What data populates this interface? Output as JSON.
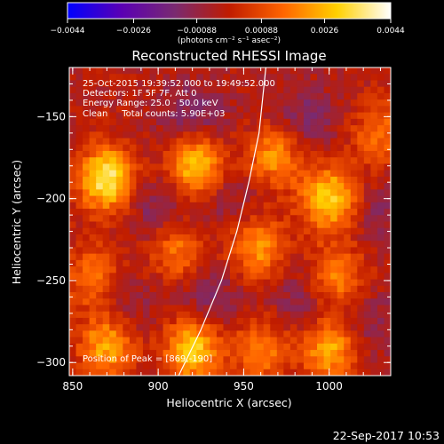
{
  "chart_data": {
    "type": "heatmap",
    "title": "Reconstructed RHESSI Image",
    "xlabel": "Heliocentric X (arcsec)",
    "ylabel": "Heliocentric Y (arcsec)",
    "xlim": [
      848,
      1036
    ],
    "ylim": [
      -308,
      -120
    ],
    "x_ticks": [
      850,
      900,
      950,
      1000
    ],
    "y_ticks": [
      -300,
      -250,
      -200,
      -150
    ],
    "x_tick_labels": [
      "850",
      "900",
      "950",
      "1000"
    ],
    "y_tick_labels": [
      "−300",
      "−250",
      "−200",
      "−150"
    ],
    "colorbar": {
      "range": [
        -0.0044,
        0.0044
      ],
      "ticks": [
        -0.0044,
        -0.0026,
        -0.00088,
        0.00088,
        0.0026,
        0.0044
      ],
      "tick_labels": [
        "−0.0044",
        "−0.0026",
        "−0.00088",
        "0.00088",
        "0.0026",
        "0.0044"
      ],
      "unit_label": "(photons cm⁻² s⁻¹ asec⁻²)",
      "colors": [
        "#0000ff",
        "#5a00b4",
        "#7a2a70",
        "#c01c00",
        "#ff6400",
        "#ffd000",
        "#ffffff"
      ]
    },
    "annotations": [
      "25-Oct-2015 19:39:52.000 to 19:49:52.000",
      "Detectors: 1F 5F 7F, Att 0",
      "Energy Range: 25.0 - 50.0 keV",
      "Clean     Total counts: 5.90E+03",
      "Position of Peak = [869,-190]"
    ],
    "peak_position": [
      869,
      -190
    ],
    "hot_spots": [
      {
        "x": 870,
        "y": -188,
        "intensity": 1.0
      },
      {
        "x": 922,
        "y": -180,
        "intensity": 0.85
      },
      {
        "x": 968,
        "y": -174,
        "intensity": 0.6
      },
      {
        "x": 1000,
        "y": -200,
        "intensity": 0.85
      },
      {
        "x": 958,
        "y": -230,
        "intensity": 0.6
      },
      {
        "x": 912,
        "y": -232,
        "intensity": 0.5
      },
      {
        "x": 862,
        "y": -248,
        "intensity": 0.5
      },
      {
        "x": 1005,
        "y": -248,
        "intensity": 0.55
      },
      {
        "x": 870,
        "y": -290,
        "intensity": 0.7
      },
      {
        "x": 920,
        "y": -292,
        "intensity": 0.85
      },
      {
        "x": 960,
        "y": -292,
        "intensity": 0.5
      },
      {
        "x": 1000,
        "y": -292,
        "intensity": 0.7
      },
      {
        "x": 1030,
        "y": -160,
        "intensity": 0.45
      }
    ],
    "cold_spots": [
      {
        "x": 920,
        "y": -150,
        "intensity": 0.8
      },
      {
        "x": 985,
        "y": -152,
        "intensity": 0.7
      },
      {
        "x": 900,
        "y": -205,
        "intensity": 0.7
      },
      {
        "x": 940,
        "y": -200,
        "intensity": 0.55
      },
      {
        "x": 1030,
        "y": -210,
        "intensity": 0.5
      },
      {
        "x": 930,
        "y": -260,
        "intensity": 0.7
      },
      {
        "x": 985,
        "y": -262,
        "intensity": 0.6
      },
      {
        "x": 880,
        "y": -265,
        "intensity": 0.5
      },
      {
        "x": 1025,
        "y": -275,
        "intensity": 0.55
      }
    ],
    "limb_curve": [
      {
        "x": 912,
        "y": -308
      },
      {
        "x": 925,
        "y": -280
      },
      {
        "x": 937,
        "y": -250
      },
      {
        "x": 946,
        "y": -220
      },
      {
        "x": 953,
        "y": -190
      },
      {
        "x": 959,
        "y": -160
      },
      {
        "x": 963,
        "y": -120
      }
    ]
  },
  "footer": {
    "timestamp": "22-Sep-2017 10:53"
  }
}
